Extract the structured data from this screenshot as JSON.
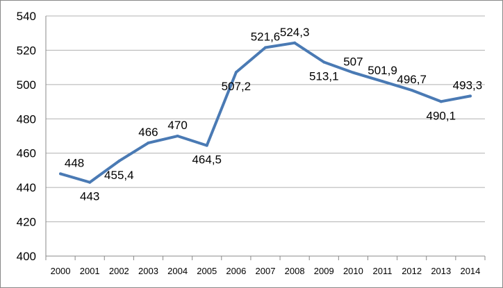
{
  "chart_data": {
    "type": "line",
    "title": "",
    "xlabel": "",
    "ylabel": "",
    "categories": [
      "2000",
      "2001",
      "2002",
      "2003",
      "2004",
      "2005",
      "2006",
      "2007",
      "2008",
      "2009",
      "2010",
      "2011",
      "2012",
      "2013",
      "2014"
    ],
    "series": [
      {
        "values": [
          448,
          443,
          455.4,
          466,
          470,
          464.5,
          507.2,
          521.6,
          524.3,
          513.1,
          507,
          501.9,
          496.7,
          490.1,
          493.3
        ],
        "data_labels": [
          "448",
          "443",
          "455,4",
          "466",
          "470",
          "464,5",
          "507,2",
          "521,6",
          "524,3",
          "513,1",
          "507",
          "501,9",
          "496,7",
          "490,1",
          "493,3"
        ],
        "color": "#4a7ab4"
      }
    ],
    "ylim": [
      400,
      540
    ],
    "yticks": [
      "400",
      "420",
      "440",
      "460",
      "480",
      "500",
      "520",
      "540"
    ],
    "grid": "horizontal",
    "legend": "none"
  }
}
